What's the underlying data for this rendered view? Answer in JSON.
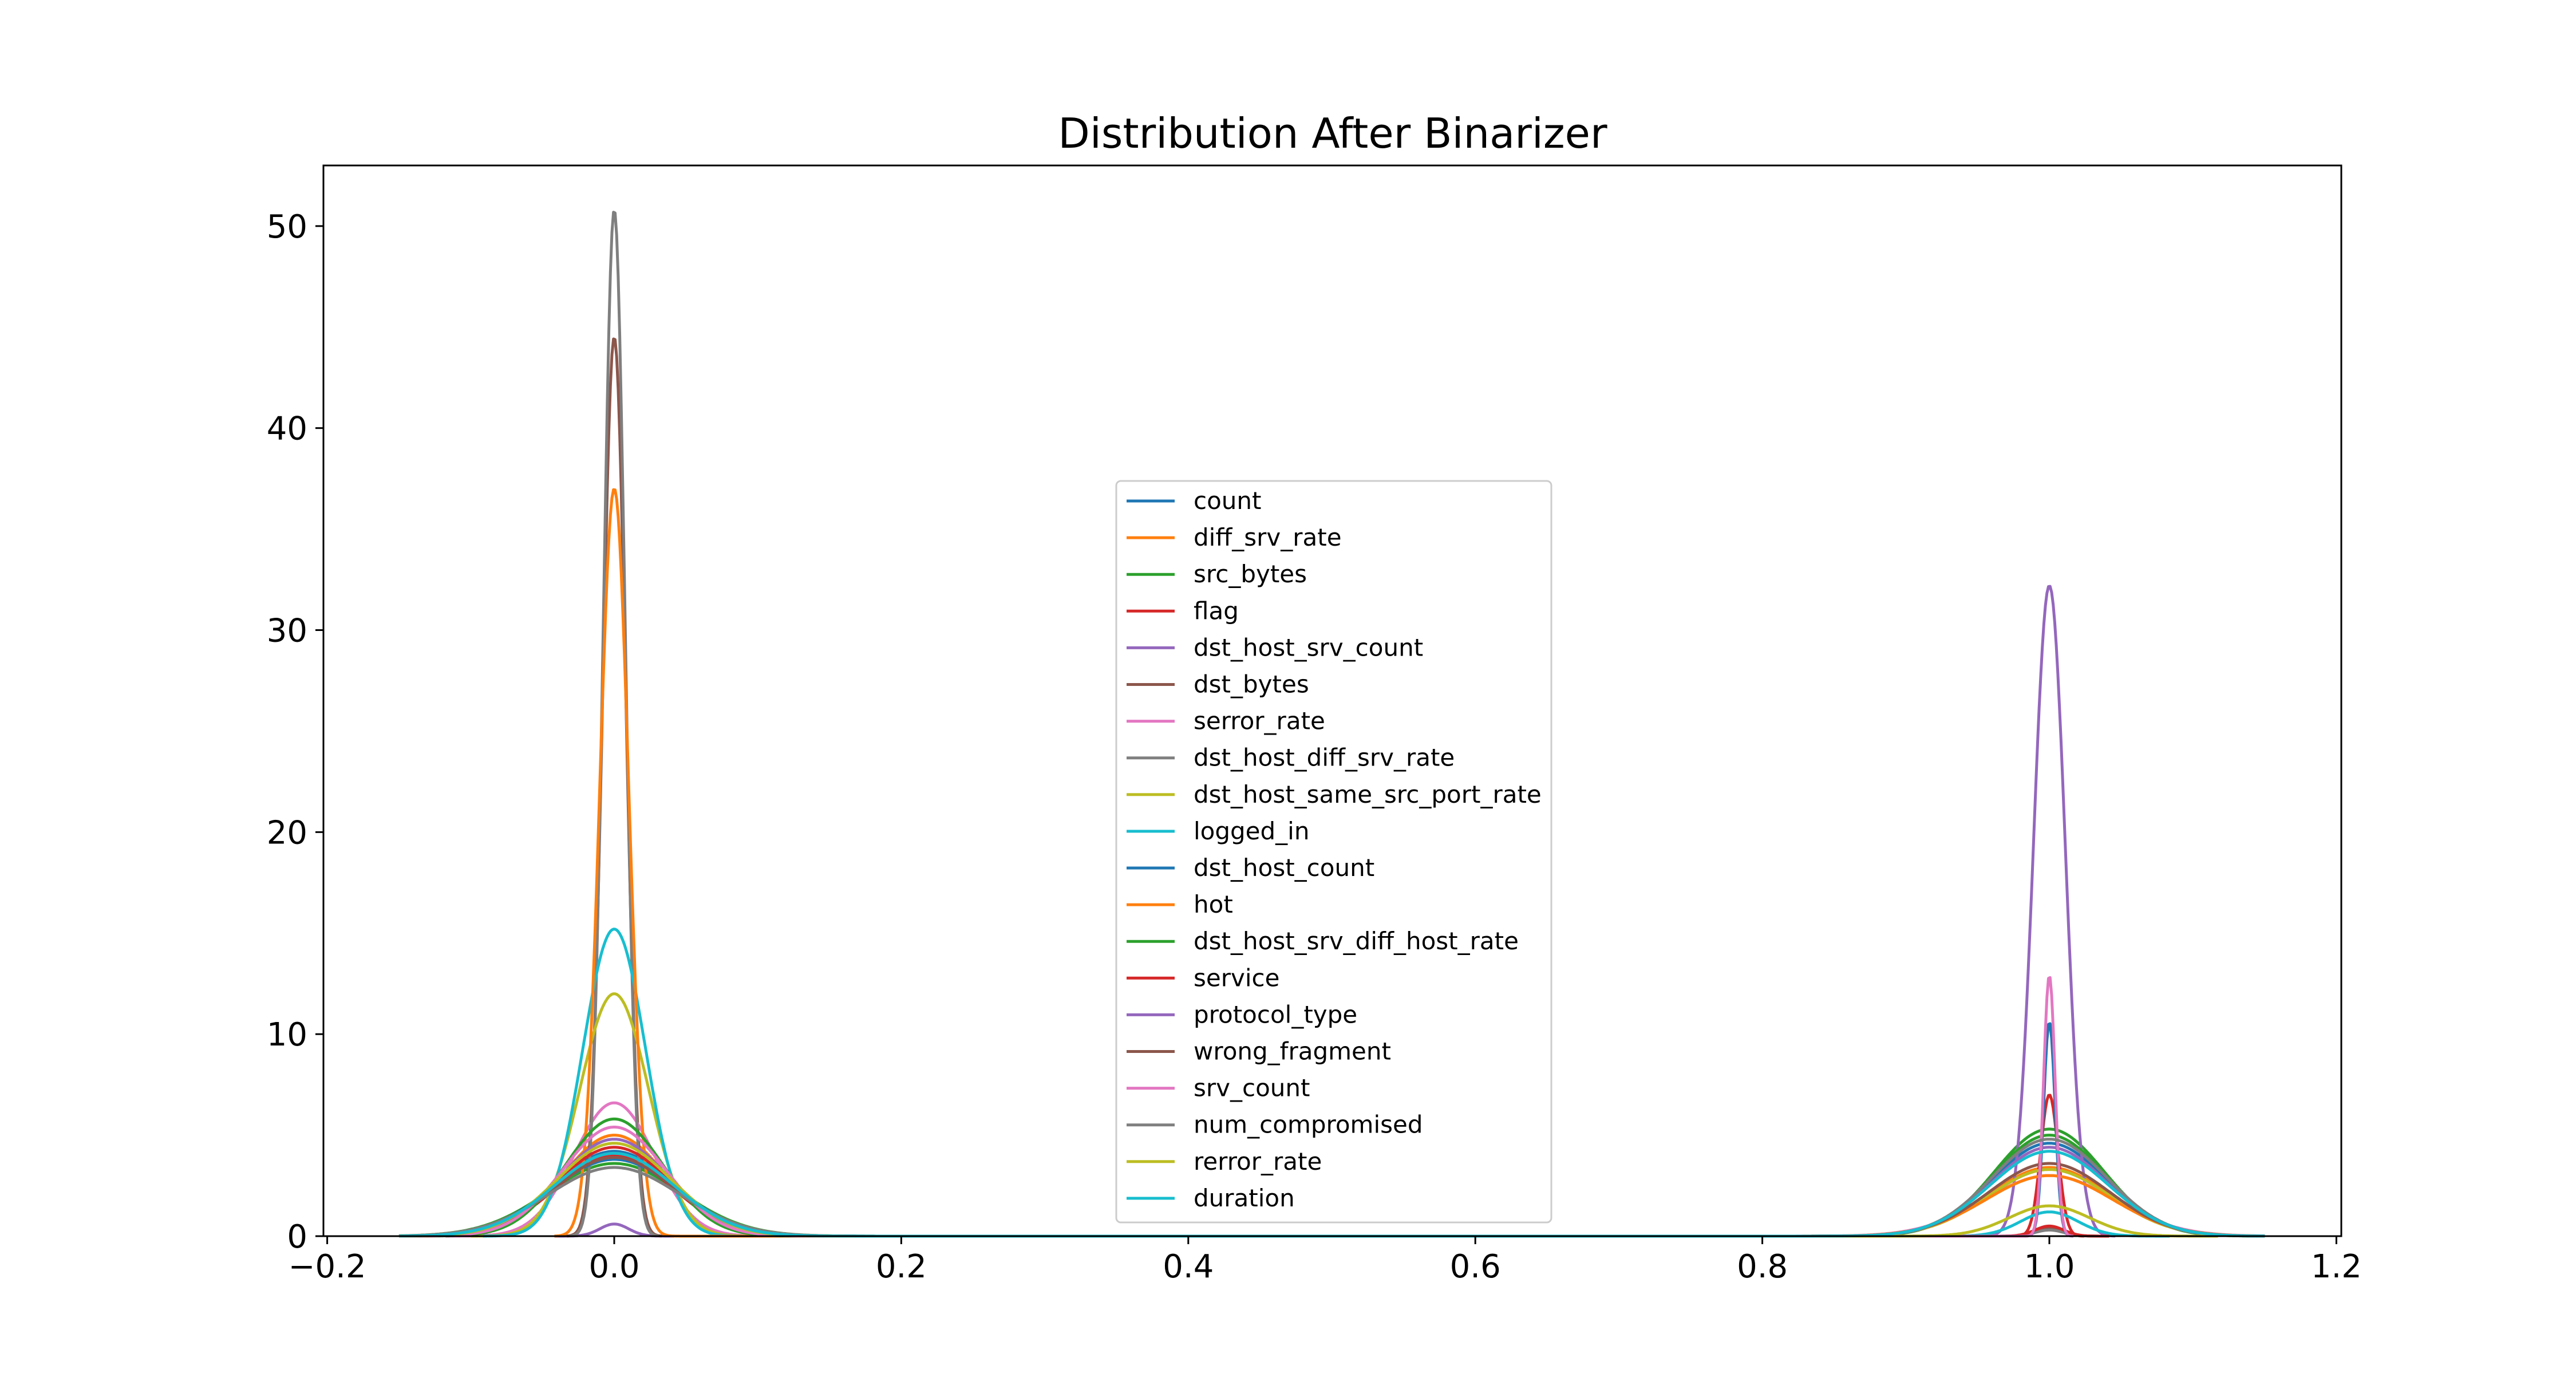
{
  "chart_data": {
    "type": "line",
    "title": "Distribution After Binarizer",
    "xlabel": "",
    "ylabel": "",
    "xlim": [
      -0.2,
      1.2
    ],
    "ylim": [
      0,
      53
    ],
    "x_ticks": [
      -0.2,
      0.0,
      0.2,
      0.4,
      0.6,
      0.8,
      1.0,
      1.2
    ],
    "x_tick_labels": [
      "−0.2",
      "0.0",
      "0.2",
      "0.4",
      "0.6",
      "0.8",
      "1.0",
      "1.2"
    ],
    "y_ticks": [
      0,
      10,
      20,
      30,
      40,
      50
    ],
    "y_tick_labels": [
      "0",
      "10",
      "20",
      "30",
      "40",
      "50"
    ],
    "grid": false,
    "legend_position": "center",
    "series": [
      {
        "name": "count",
        "color": "#1f77b4",
        "p0": 4.2,
        "s0": 0.042,
        "p1": 4.6,
        "s1": 0.04
      },
      {
        "name": "diff_srv_rate",
        "color": "#ff7f0e",
        "p0": 5.0,
        "s0": 0.036,
        "p1": 3.4,
        "s1": 0.042
      },
      {
        "name": "src_bytes",
        "color": "#2ca02c",
        "p0": 3.6,
        "s0": 0.046,
        "p1": 5.3,
        "s1": 0.038
      },
      {
        "name": "flag",
        "color": "#d62728",
        "p0": 4.0,
        "s0": 0.04,
        "p1": 7.0,
        "s1": 0.006
      },
      {
        "name": "dst_host_srv_count",
        "color": "#9467bd",
        "p0": 0.6,
        "s0": 0.01,
        "p1": 32.2,
        "s1": 0.011
      },
      {
        "name": "dst_bytes",
        "color": "#8c564b",
        "p0": 44.5,
        "s0": 0.008,
        "p1": 0.4,
        "s1": 0.01
      },
      {
        "name": "serror_rate",
        "color": "#e377c2",
        "p0": 6.6,
        "s0": 0.028,
        "p1": 3.0,
        "s1": 0.045
      },
      {
        "name": "dst_host_diff_srv_rate",
        "color": "#7f7f7f",
        "p0": 50.8,
        "s0": 0.0075,
        "p1": 0.3,
        "s1": 0.01
      },
      {
        "name": "dst_host_same_src_port_rate",
        "color": "#bcbd22",
        "p0": 12.0,
        "s0": 0.024,
        "p1": 3.3,
        "s1": 0.042
      },
      {
        "name": "logged_in",
        "color": "#17becf",
        "p0": 15.2,
        "s0": 0.022,
        "p1": 1.2,
        "s1": 0.02
      },
      {
        "name": "dst_host_count",
        "color": "#1f77b4",
        "p0": 3.8,
        "s0": 0.044,
        "p1": 10.6,
        "s1": 0.004
      },
      {
        "name": "hot",
        "color": "#ff7f0e",
        "p0": 37.0,
        "s0": 0.01,
        "p1": 3.0,
        "s1": 0.044
      },
      {
        "name": "dst_host_srv_diff_host_rate",
        "color": "#2ca02c",
        "p0": 5.8,
        "s0": 0.034,
        "p1": 5.0,
        "s1": 0.039
      },
      {
        "name": "service",
        "color": "#d62728",
        "p0": 4.4,
        "s0": 0.04,
        "p1": 0.5,
        "s1": 0.01
      },
      {
        "name": "protocol_type",
        "color": "#9467bd",
        "p0": 4.8,
        "s0": 0.038,
        "p1": 4.4,
        "s1": 0.04
      },
      {
        "name": "wrong_fragment",
        "color": "#8c564b",
        "p0": 3.9,
        "s0": 0.042,
        "p1": 3.6,
        "s1": 0.042
      },
      {
        "name": "srv_count",
        "color": "#e377c2",
        "p0": 5.4,
        "s0": 0.036,
        "p1": 12.9,
        "s1": 0.004
      },
      {
        "name": "num_compromised",
        "color": "#7f7f7f",
        "p0": 3.4,
        "s0": 0.046,
        "p1": 4.8,
        "s1": 0.04
      },
      {
        "name": "rerror_rate",
        "color": "#bcbd22",
        "p0": 4.6,
        "s0": 0.04,
        "p1": 1.5,
        "s1": 0.028
      },
      {
        "name": "duration",
        "color": "#17becf",
        "p0": 4.1,
        "s0": 0.042,
        "p1": 4.2,
        "s1": 0.041
      }
    ]
  }
}
